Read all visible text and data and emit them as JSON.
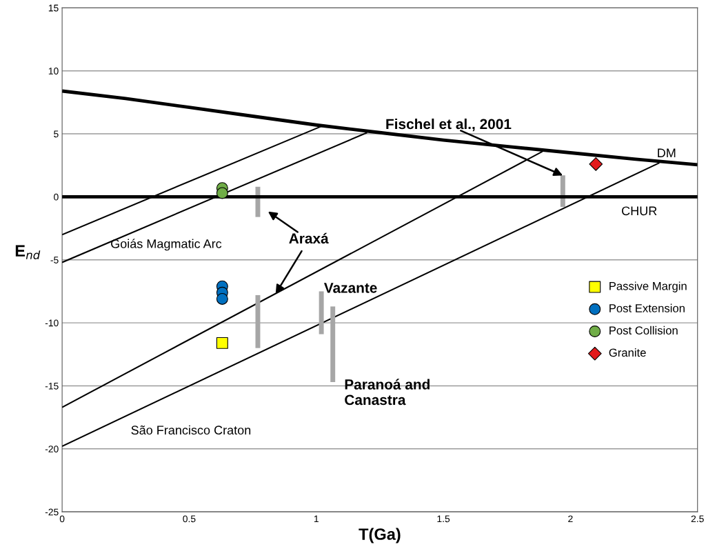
{
  "chart_data": {
    "type": "line",
    "xlabel": "T(Ga)",
    "ylabel": "E$_{nd}$",
    "xlim": [
      0,
      2.5
    ],
    "xticks": [
      0,
      0.5,
      1,
      1.5,
      2,
      2.5
    ],
    "ylim": [
      -25,
      15
    ],
    "yticks": [
      -25,
      -20,
      -15,
      -10,
      -5,
      0,
      5,
      10,
      15
    ],
    "grid": "y",
    "legend": "right",
    "marker": "none",
    "line_style": "solid",
    "ref_lines": [
      {
        "axis": "y",
        "value": 0,
        "color": "#000000"
      }
    ],
    "series": [
      {
        "color": "#000000",
        "x": [
          0,
          0.25,
          0.5,
          0.75,
          1.0,
          1.25,
          1.5,
          1.75,
          2.0,
          2.25,
          2.5
        ],
        "values": [
          8.4,
          7.8,
          7.1,
          6.4,
          5.7,
          5.1,
          4.5,
          4.0,
          3.5,
          3.0,
          2.55
        ]
      },
      {
        "type": "line",
        "color": "#000000",
        "x": [
          0,
          1.02
        ],
        "values": [
          -3.0,
          5.6
        ]
      },
      {
        "type": "line",
        "color": "#000000",
        "x": [
          0,
          1.2
        ],
        "values": [
          -5.2,
          5.1
        ]
      },
      {
        "type": "line",
        "color": "#000000",
        "x": [
          0,
          1.89
        ],
        "values": [
          -16.7,
          3.6
        ]
      },
      {
        "type": "line",
        "color": "#000000",
        "x": [
          0,
          2.35
        ],
        "values": [
          -19.8,
          2.7
        ]
      },
      {
        "type": "line",
        "color": "#a6a6a6",
        "x": [
          0.77,
          0.77
        ],
        "values": [
          0.8,
          -1.6
        ]
      },
      {
        "type": "line",
        "color": "#a6a6a6",
        "x": [
          0.77,
          0.77
        ],
        "values": [
          -7.8,
          -12.0
        ]
      },
      {
        "type": "line",
        "color": "#a6a6a6",
        "x": [
          1.02,
          1.02
        ],
        "values": [
          -7.5,
          -10.9
        ]
      },
      {
        "type": "line",
        "color": "#a6a6a6",
        "x": [
          1.065,
          1.065
        ],
        "values": [
          -8.7,
          -14.7
        ]
      },
      {
        "type": "line",
        "color": "#a6a6a6",
        "x": [
          1.97,
          1.97
        ],
        "values": [
          1.7,
          -0.8
        ]
      },
      {
        "type": "scatter",
        "name": "Passive Margin",
        "color": "#ffff00",
        "marker": "square",
        "x": [
          0.63
        ],
        "values": [
          -11.6
        ]
      },
      {
        "type": "scatter",
        "name": "Post Extension",
        "color": "#0070c0",
        "marker": "circle",
        "x": [
          0.63,
          0.63,
          0.63
        ],
        "values": [
          -7.1,
          -7.6,
          -8.1
        ]
      },
      {
        "type": "scatter",
        "name": "Post Collision",
        "color": "#70ad47",
        "marker": "circle",
        "x": [
          0.63,
          0.63
        ],
        "values": [
          0.7,
          0.3
        ]
      },
      {
        "type": "scatter",
        "name": "Granite",
        "color": "#e31a1c",
        "marker": "diamond",
        "x": [
          2.1
        ],
        "values": [
          2.6
        ]
      }
    ],
    "annotations": [
      "Goiás Magmatic Arc",
      "São Francisco Craton",
      "DM",
      "CHUR",
      {
        "text": "Araxá",
        "x": 0.84,
        "y": -7.7
      },
      "Vazante",
      "Paranoá and\nCanastra",
      {
        "text": "Fischel et al., 2001",
        "x": 1.97,
        "y": 1.7
      }
    ]
  }
}
